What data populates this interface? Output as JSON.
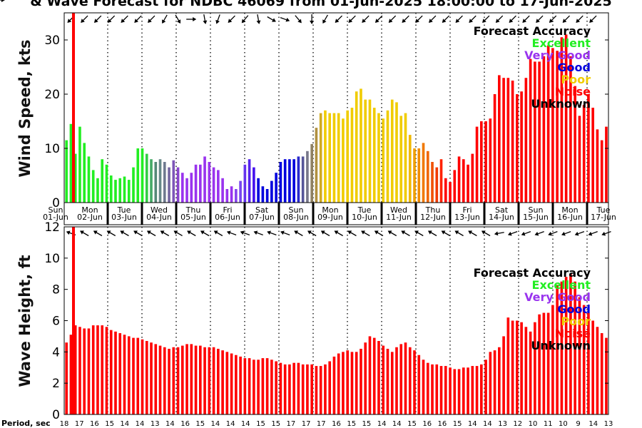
{
  "title": "& Wave Forecast for NDBC 46069 from 01-Jun-2025 18:00:00 to 17-Jun-2025",
  "chart_data": [
    {
      "type": "bar",
      "ylabel": "Wind Speed, kts",
      "ylim": [
        0,
        35
      ],
      "yticks": [
        0,
        10,
        20,
        30
      ],
      "grid": "dotted vertical lines at day boundaries",
      "legend_title": "Forecast Accuracy",
      "legend": [
        {
          "label": "Excellent",
          "color": "#22ee22"
        },
        {
          "label": "Very Good",
          "color": "#9933ee"
        },
        {
          "label": "Good",
          "color": "#0000dd"
        },
        {
          "label": "Poor",
          "color": "#f0cc00"
        },
        {
          "label": "Noise",
          "color": "#ff0000"
        },
        {
          "label": "Unknown",
          "color": "#000000"
        }
      ],
      "legend_position": "top-right",
      "x_day_labels": [
        {
          "day": "Sun",
          "date": "01-Jun"
        },
        {
          "day": "Mon",
          "date": "02-Jun"
        },
        {
          "day": "Tue",
          "date": "03-Jun"
        },
        {
          "day": "Wed",
          "date": "04-Jun"
        },
        {
          "day": "Thu",
          "date": "05-Jun"
        },
        {
          "day": "Fri",
          "date": "06-Jun"
        },
        {
          "day": "Sat",
          "date": "07-Jun"
        },
        {
          "day": "Sun",
          "date": "08-Jun"
        },
        {
          "day": "Mon",
          "date": "09-Jun"
        },
        {
          "day": "Tue",
          "date": "10-Jun"
        },
        {
          "day": "Wed",
          "date": "11-Jun"
        },
        {
          "day": "Thu",
          "date": "12-Jun"
        },
        {
          "day": "Fri",
          "date": "13-Jun"
        },
        {
          "day": "Sat",
          "date": "14-Jun"
        },
        {
          "day": "Sun",
          "date": "15-Jun"
        },
        {
          "day": "Mon",
          "date": "16-Jun"
        },
        {
          "day": "Tue",
          "date": "17-Jun"
        }
      ],
      "values": [
        11.5,
        14.5,
        9.0,
        14.0,
        11.0,
        8.5,
        6.0,
        4.5,
        8.0,
        7.0,
        5.0,
        4.2,
        4.5,
        4.8,
        4.2,
        6.5,
        10.0,
        10.0,
        9.0,
        8.0,
        7.5,
        8.0,
        7.5,
        6.5,
        7.8,
        6.5,
        5.5,
        4.5,
        5.5,
        7.0,
        7.0,
        8.5,
        7.5,
        6.5,
        6.0,
        4.5,
        2.5,
        3.0,
        2.5,
        4.0,
        7.0,
        8.0,
        6.5,
        4.5,
        3.0,
        2.5,
        4.0,
        5.5,
        7.5,
        8.0,
        8.0,
        8.0,
        8.5,
        8.5,
        9.5,
        10.8,
        13.8,
        16.5,
        17.0,
        16.5,
        16.5,
        16.5,
        15.5,
        17.0,
        17.5,
        20.5,
        21.0,
        19.0,
        19.0,
        17.5,
        16.5,
        15.5,
        17.0,
        19.0,
        18.5,
        16.0,
        16.5,
        12.5,
        10.0,
        10.0,
        11.0,
        9.5,
        7.5,
        6.5,
        8.0,
        4.5,
        3.8,
        6.0,
        8.5,
        8.0,
        7.0,
        9.0,
        14.0,
        15.0,
        15.0,
        15.5,
        20.0,
        23.5,
        23.0,
        23.0,
        22.5,
        20.0,
        20.5,
        23.0,
        26.5,
        26.0,
        26.0,
        27.0,
        29.0,
        28.5,
        28.0,
        30.5,
        31.0,
        27.0,
        21.5,
        16.0,
        18.0,
        20.0,
        17.5,
        13.5,
        11.5,
        14.0
      ],
      "colors": [
        "#22ee22",
        "#22ee22",
        "#22ee22",
        "#22ee22",
        "#22ee22",
        "#22ee22",
        "#22ee22",
        "#22ee22",
        "#22ee22",
        "#22ee22",
        "#22ee22",
        "#22ee22",
        "#22ee22",
        "#22ee22",
        "#22ee22",
        "#22ee22",
        "#22ee22",
        "#22ee22",
        "#33cc44",
        "#44aa66",
        "#558877",
        "#668888",
        "#6f7a8f",
        "#7366a0",
        "#7d55b8",
        "#8844cc",
        "#9933ee",
        "#9933ee",
        "#9933ee",
        "#9933ee",
        "#9933ee",
        "#9933ee",
        "#9933ee",
        "#9933ee",
        "#9933ee",
        "#9933ee",
        "#9933ee",
        "#9933ee",
        "#8844ee",
        "#7744ee",
        "#6633ee",
        "#5522ee",
        "#4411ee",
        "#0000dd",
        "#0000dd",
        "#0000dd",
        "#0000dd",
        "#0000dd",
        "#0000dd",
        "#0000dd",
        "#0000dd",
        "#0000dd",
        "#2a2acc",
        "#555599",
        "#77778a",
        "#8f8060",
        "#b09040",
        "#d0aa20",
        "#f0cc00",
        "#f0cc00",
        "#f0cc00",
        "#f0cc00",
        "#f0cc00",
        "#f0cc00",
        "#f0cc00",
        "#f0cc00",
        "#f0cc00",
        "#f0cc00",
        "#f0cc00",
        "#f0cc00",
        "#f0cc00",
        "#f0cc00",
        "#f0cc00",
        "#f0cc00",
        "#f0cc00",
        "#f0cc00",
        "#f0cc00",
        "#f0b800",
        "#f0a000",
        "#f08c00",
        "#f07800",
        "#f06600",
        "#f05000",
        "#f03a00",
        "#ff2200",
        "#ff0000",
        "#ff0000",
        "#ff0000",
        "#ff0000",
        "#ff0000",
        "#ff0000",
        "#ff0000",
        "#ff0000",
        "#ff0000",
        "#ff0000",
        "#ff0000",
        "#ff0000",
        "#ff0000",
        "#ff0000",
        "#ff0000",
        "#ff0000",
        "#ff0000",
        "#ff0000",
        "#ff0000",
        "#ff0000",
        "#ff0000",
        "#ff0000",
        "#ff0000",
        "#ff0000",
        "#ff0000",
        "#ff0000",
        "#ff0000",
        "#ff0000",
        "#ff0000",
        "#ff0000",
        "#ff0000",
        "#ff0000",
        "#ff0000",
        "#ff0000",
        "#ff0000",
        "#ff0000",
        "#ff0000"
      ],
      "direction_deg": [
        135,
        135,
        135,
        135,
        135,
        135,
        135,
        135,
        135,
        135,
        135,
        135,
        135,
        135,
        135,
        135,
        135,
        135,
        135,
        135,
        135,
        120,
        100,
        80,
        60,
        40,
        20,
        0,
        30,
        60,
        80,
        90,
        100,
        110,
        120,
        130,
        135,
        135,
        135,
        130,
        120,
        100,
        80,
        60,
        40,
        30,
        20,
        20,
        20,
        30,
        40,
        50,
        60,
        80,
        90,
        100,
        110,
        120,
        130,
        135,
        135,
        135,
        135,
        135,
        135,
        135,
        135,
        135,
        135,
        135,
        135,
        135,
        135,
        135,
        135,
        135,
        135,
        135,
        135,
        135,
        135,
        135,
        135,
        135,
        135,
        135,
        135,
        135,
        135,
        135,
        135,
        135,
        135,
        135,
        135,
        135,
        135,
        135,
        135,
        135,
        135,
        135,
        135,
        135,
        135,
        135,
        135,
        135,
        135,
        135,
        135,
        135,
        135,
        135,
        135,
        135,
        135,
        135,
        135,
        135
      ]
    },
    {
      "type": "bar",
      "ylabel": "Wave Height, ft",
      "ylim": [
        0,
        12
      ],
      "yticks": [
        0,
        2,
        4,
        6,
        8,
        10,
        12
      ],
      "legend_title": "Forecast Accuracy",
      "legend": [
        {
          "label": "Excellent",
          "color": "#22ee22"
        },
        {
          "label": "Very Good",
          "color": "#9933ee"
        },
        {
          "label": "Good",
          "color": "#0000dd"
        },
        {
          "label": "Poor",
          "color": "#f0cc00"
        },
        {
          "label": "Noise",
          "color": "#ff0000"
        },
        {
          "label": "Unknown",
          "color": "#000000"
        }
      ],
      "legend_position": "right",
      "bar_color": "#ff0000",
      "values": [
        4.6,
        5.1,
        5.7,
        5.6,
        5.5,
        5.5,
        5.7,
        5.7,
        5.7,
        5.6,
        5.4,
        5.3,
        5.2,
        5.1,
        5.0,
        4.9,
        4.9,
        4.8,
        4.7,
        4.6,
        4.5,
        4.4,
        4.3,
        4.2,
        4.3,
        4.3,
        4.4,
        4.5,
        4.5,
        4.4,
        4.4,
        4.3,
        4.3,
        4.3,
        4.2,
        4.1,
        4.0,
        3.9,
        3.8,
        3.7,
        3.6,
        3.6,
        3.5,
        3.5,
        3.6,
        3.6,
        3.5,
        3.4,
        3.3,
        3.2,
        3.2,
        3.3,
        3.3,
        3.2,
        3.2,
        3.2,
        3.1,
        3.1,
        3.2,
        3.4,
        3.7,
        3.9,
        4.0,
        4.1,
        4.0,
        4.0,
        4.2,
        4.6,
        5.0,
        4.9,
        4.7,
        4.4,
        4.2,
        4.0,
        4.3,
        4.5,
        4.6,
        4.3,
        4.1,
        3.8,
        3.5,
        3.3,
        3.2,
        3.2,
        3.1,
        3.1,
        3.0,
        2.9,
        2.9,
        3.0,
        3.0,
        3.1,
        3.1,
        3.2,
        3.5,
        4.0,
        4.1,
        4.3,
        5.0,
        6.2,
        6.0,
        6.0,
        5.9,
        5.6,
        5.3,
        5.9,
        6.4,
        6.5,
        6.5,
        7.0,
        8.3,
        8.5,
        8.8,
        9.0,
        8.5,
        7.5,
        7.0,
        6.5,
        6.0,
        5.6,
        5.2,
        4.9
      ],
      "direction_deg": [
        200,
        200,
        200,
        210,
        210,
        210,
        210,
        210,
        210,
        210,
        210,
        210,
        210,
        210,
        210,
        210,
        210,
        210,
        210,
        210,
        210,
        210,
        210,
        210,
        210,
        210,
        210,
        210,
        210,
        210,
        210,
        210,
        210,
        210,
        210,
        210,
        200,
        190,
        190,
        200,
        200,
        200,
        200,
        200,
        200,
        200,
        200,
        200,
        200,
        200,
        210,
        210,
        210,
        210,
        210,
        210,
        210,
        210,
        210,
        210,
        210,
        210,
        210,
        210,
        210,
        210,
        210,
        210,
        210,
        210,
        210,
        210,
        210,
        210,
        210,
        210,
        210,
        210,
        210,
        210,
        210,
        210,
        210,
        210,
        210,
        210,
        210,
        210,
        210,
        210,
        210,
        210,
        210,
        210,
        200,
        200,
        170,
        160,
        160,
        160,
        160,
        160,
        160,
        160,
        160,
        160,
        160,
        160,
        160,
        160,
        160,
        160,
        160,
        160,
        160,
        160,
        160,
        160,
        160,
        160,
        160,
        160
      ]
    }
  ],
  "period_label": "Period, sec",
  "period_values": [
    "18",
    "17",
    "16",
    "15",
    "14",
    "14",
    "13",
    "14",
    "16",
    "15",
    "14",
    "14",
    "14",
    "15",
    "15",
    "17",
    "17",
    "17",
    "16",
    "15",
    "15",
    "14",
    "14",
    "15",
    "16",
    "16",
    "15",
    "14",
    "14",
    "13",
    "12",
    "10",
    "11",
    "10",
    "9",
    "14",
    "13"
  ]
}
